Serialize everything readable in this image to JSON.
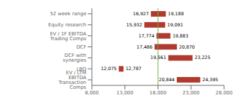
{
  "chart_data": {
    "type": "bar",
    "orientation": "horizontal",
    "categories": [
      "EV / LTM EBITDA Transaction Comps",
      "LBO",
      "DCF with synergies",
      "DCF",
      "EV / 1F EBITDA Trading Comps",
      "Equity research",
      "52 week range"
    ],
    "low": [
      20844,
      12075,
      19561,
      17486,
      17774,
      15932,
      16927
    ],
    "high": [
      24395,
      12787,
      23225,
      20870,
      19883,
      19091,
      19188
    ],
    "low_labels": [
      "20,844",
      "12,075",
      "19,561",
      "17,486",
      "17,774",
      "15,932",
      "16,927"
    ],
    "high_labels": [
      "24,395",
      "12,787",
      "23,225",
      "20,870",
      "19,883",
      "19,091",
      "19,188"
    ],
    "color": "#b03a2e",
    "data_labels": true,
    "reference_lines": [
      {
        "x": 18000,
        "color": "#6db33f"
      }
    ],
    "xlim": [
      8000,
      28000
    ],
    "xticks": [
      {
        "value": 8000,
        "label": "8,000"
      },
      {
        "value": 13000,
        "label": "13,000"
      },
      {
        "value": 18000,
        "label": "18,000"
      },
      {
        "value": 23000,
        "label": "23,000"
      },
      {
        "value": 28000,
        "label": "28,000"
      }
    ],
    "grid": false
  }
}
